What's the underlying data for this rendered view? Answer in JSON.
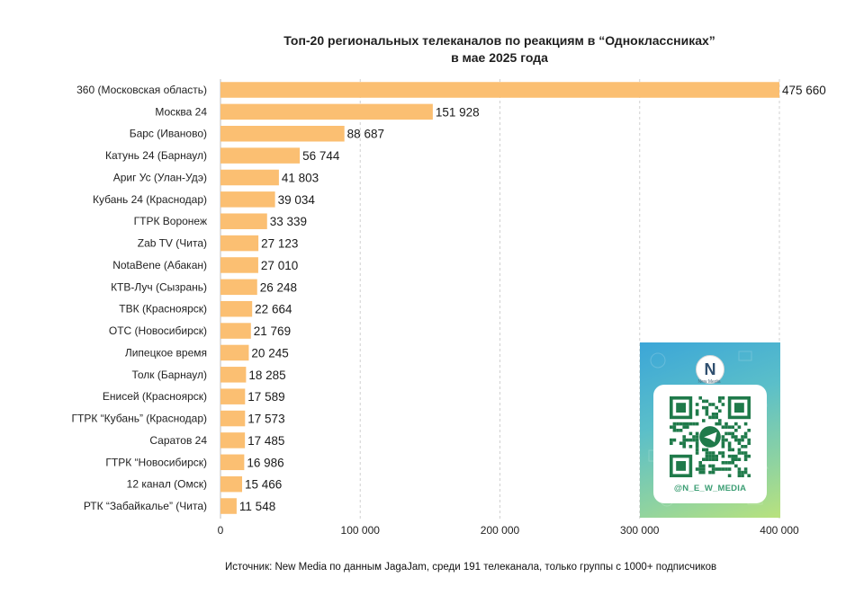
{
  "title": {
    "line1": "Топ-20 региональных телеканалов по реакциям в “Одноклассниках”",
    "line2": "в мае 2025 года"
  },
  "source": "Источник: New Media по данным JagaJam, среди 191 телеканала, только группы с 1000+ подписчиков",
  "promo": {
    "logo_text": "N",
    "logo_sub": "New Media",
    "handle": "@N_E_W_MEDIA"
  },
  "chart_data": {
    "type": "bar",
    "orientation": "horizontal",
    "categories": [
      "360 (Московская область)",
      "Москва 24",
      "Барс (Иваново)",
      "Катунь 24 (Барнаул)",
      "Ариг Ус (Улан-Удэ)",
      "Кубань 24 (Краснодар)",
      "ГТРК Воронеж",
      "Zab TV (Чита)",
      "NotaBene (Абакан)",
      "КТВ-Луч (Сызрань)",
      "ТВК (Красноярск)",
      "ОТС (Новосибирск)",
      "Липецкое время",
      "Толк (Барнаул)",
      "Енисей (Красноярск)",
      "ГТРК “Кубань” (Краснодар)",
      "Саратов 24",
      "ГТРК “Новосибирск)",
      "12 канал (Омск)",
      "РТК “Забайкалье” (Чита)"
    ],
    "values": [
      475660,
      151928,
      88687,
      56744,
      41803,
      39034,
      33339,
      27123,
      27010,
      26248,
      22664,
      21769,
      20245,
      18285,
      17589,
      17573,
      17485,
      16986,
      15466,
      11548
    ],
    "value_labels": [
      "475 660",
      "151 928",
      "88 687",
      "56 744",
      "41 803",
      "39 034",
      "33 339",
      "27 123",
      "27 010",
      "26 248",
      "22 664",
      "21 769",
      "20 245",
      "18 285",
      "17 589",
      "17 573",
      "17 485",
      "16 986",
      "15 466",
      "11 548"
    ],
    "xlim": [
      0,
      400000
    ],
    "ticks": [
      0,
      100000,
      200000,
      300000,
      400000
    ],
    "tick_labels": [
      "0",
      "100 000",
      "200 000",
      "300 000",
      "400 000"
    ],
    "grid": "vertical dashed",
    "bar_color": "#fbbf72",
    "grid_color": "#d0d0d0"
  }
}
